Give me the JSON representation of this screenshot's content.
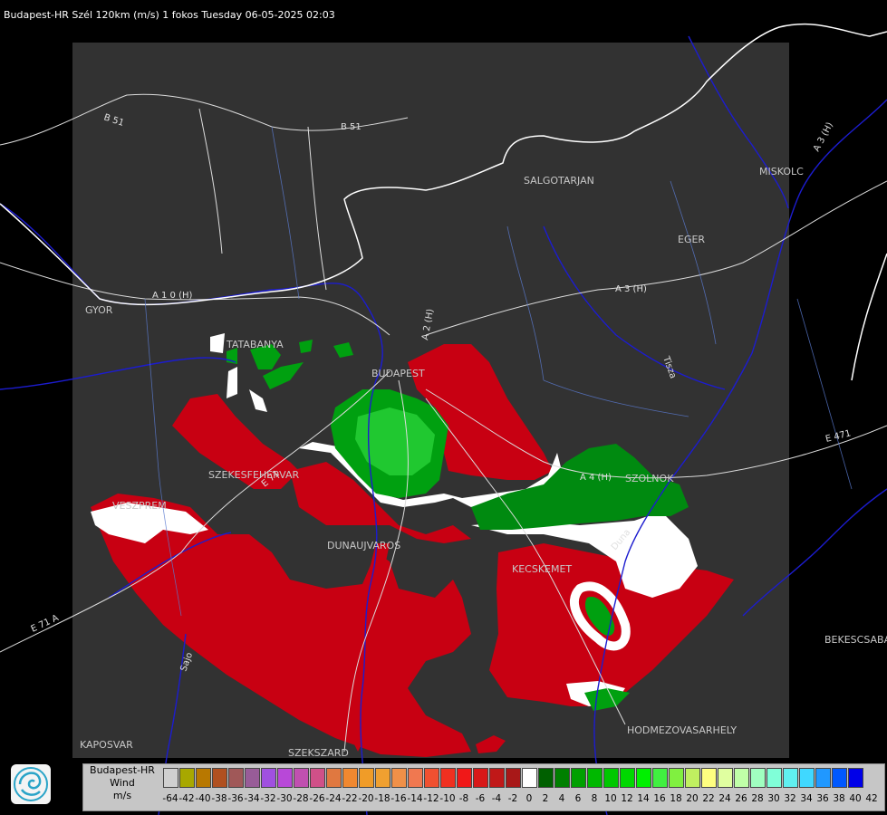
{
  "title": "Budapest-HR Szél 120km (m/s) 1 fokos Tuesday 06-05-2025 02:03",
  "cities": [
    {
      "name": "TATABANYA"
    },
    {
      "name": "BUDAPEST"
    },
    {
      "name": "SZEKESFEHERVAR"
    },
    {
      "name": "VESZPREM"
    },
    {
      "name": "DUNAUJVAROS"
    },
    {
      "name": "KECSKEMET"
    },
    {
      "name": "SZOLNOK"
    },
    {
      "name": "SALGOTARJAN"
    },
    {
      "name": "EGER"
    },
    {
      "name": "MISKOLC"
    },
    {
      "name": "HODMEZOVASARHELY"
    },
    {
      "name": "BEKESCSABA"
    },
    {
      "name": "KAPOSVAR"
    },
    {
      "name": "SZEKSZARD"
    },
    {
      "name": "GYOR"
    }
  ],
  "roads": [
    "B 51",
    "B 51",
    "A 1 0 (H)",
    "A 2 (H)",
    "A 3 (H)",
    "A 3 (H)",
    "A 4 (H)",
    "E 71",
    "E 71 A",
    "E 471"
  ],
  "rivers": [
    "Duna",
    "Tisza",
    "Sajo"
  ],
  "legend": {
    "line1": "Budapest-HR",
    "line2": "Wind",
    "line3": "m/s",
    "swatch_colors": [
      "#d0d0d0",
      "#a8a800",
      "#b87800",
      "#b05020",
      "#a05858",
      "#985c98",
      "#a050e0",
      "#b848d8",
      "#c050b0",
      "#d05088",
      "#e07840",
      "#f08830",
      "#f09c28",
      "#f0a030",
      "#f09048",
      "#f07850",
      "#f05030",
      "#f03020",
      "#f01818",
      "#d81818",
      "#c01818",
      "#a81818",
      "#ffffff",
      "#006000",
      "#008000",
      "#00a000",
      "#00b800",
      "#00c800",
      "#00d800",
      "#00f000",
      "#40f040",
      "#80f040",
      "#c0f060",
      "#ffff80",
      "#e0ffa0",
      "#c0ffa8",
      "#a0ffc0",
      "#80ffd8",
      "#60f0f0",
      "#40d8ff",
      "#2098ff",
      "#0058ff",
      "#0000e8"
    ],
    "ticks": [
      "-64",
      "-42",
      "-40",
      "-38",
      "-36",
      "-34",
      "-32",
      "-30",
      "-28",
      "-26",
      "-24",
      "-22",
      "-20",
      "-18",
      "-16",
      "-14",
      "-12",
      "-10",
      "-8",
      "-6",
      "-4",
      "-2",
      "0",
      "2",
      "4",
      "6",
      "8",
      "10",
      "12",
      "14",
      "16",
      "18",
      "20",
      "22",
      "24",
      "26",
      "28",
      "30",
      "32",
      "34",
      "36",
      "38",
      "40",
      "42"
    ]
  },
  "colors": {
    "background": "#000000",
    "radar_box": "#323232",
    "boundary": "#ffffff",
    "river": "#1c1ccf",
    "road": "#dddddd",
    "red_echo": "#c80012",
    "green_echo": "#009a15"
  }
}
